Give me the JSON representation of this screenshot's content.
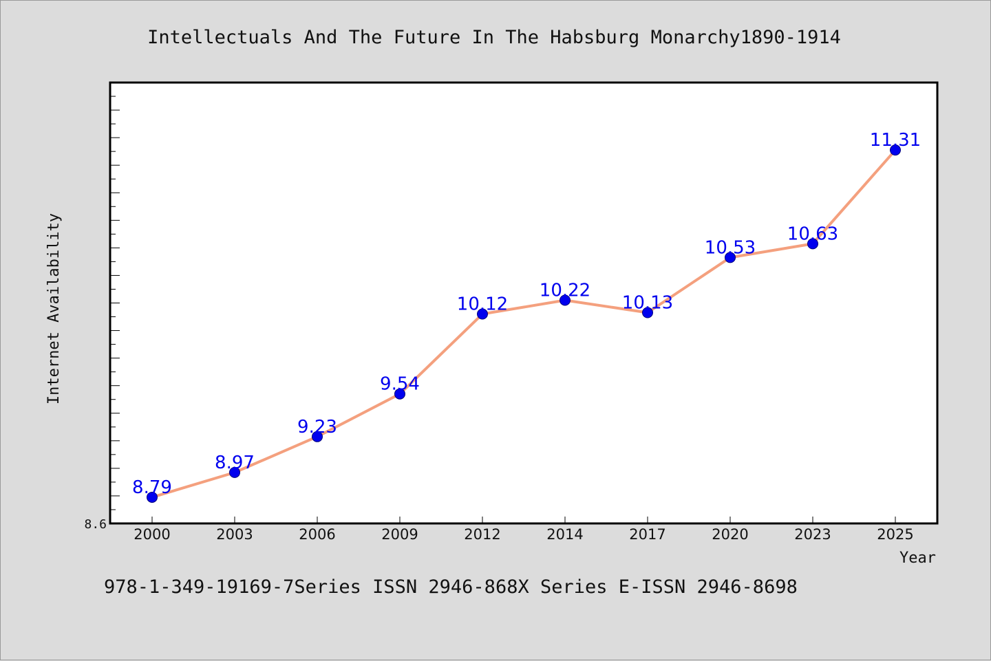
{
  "chart_data": {
    "type": "line",
    "title": "Intellectuals And The Future In The Habsburg Monarchy1890-1914",
    "xlabel": "Year",
    "ylabel": "Internet Availability",
    "categories": [
      "2000",
      "2003",
      "2006",
      "2009",
      "2012",
      "2014",
      "2017",
      "2020",
      "2023",
      "2025"
    ],
    "series": [
      {
        "values": [
          8.79,
          8.97,
          9.23,
          9.54,
          10.12,
          10.22,
          10.13,
          10.53,
          10.63,
          11.31
        ],
        "labels": [
          "8.79",
          "8.97",
          "9.23",
          "9.54",
          "10.12",
          "10.22",
          "10.13",
          "10.53",
          "10.63",
          "11.31"
        ]
      }
    ],
    "ylim": [
      8.6,
      11.8
    ],
    "y_min_label": "8.6",
    "grid": false,
    "colors": {
      "line": "#f4a07e",
      "marker": "#0000ee",
      "marker_edge": "#00007a",
      "data_label": "#0000ee",
      "plot_bg": "#ffffff",
      "page_bg": "#dcdcdc"
    }
  },
  "footer": {
    "text": "978-1-349-19169-7Series ISSN 2946-868X Series E-ISSN 2946-8698"
  }
}
